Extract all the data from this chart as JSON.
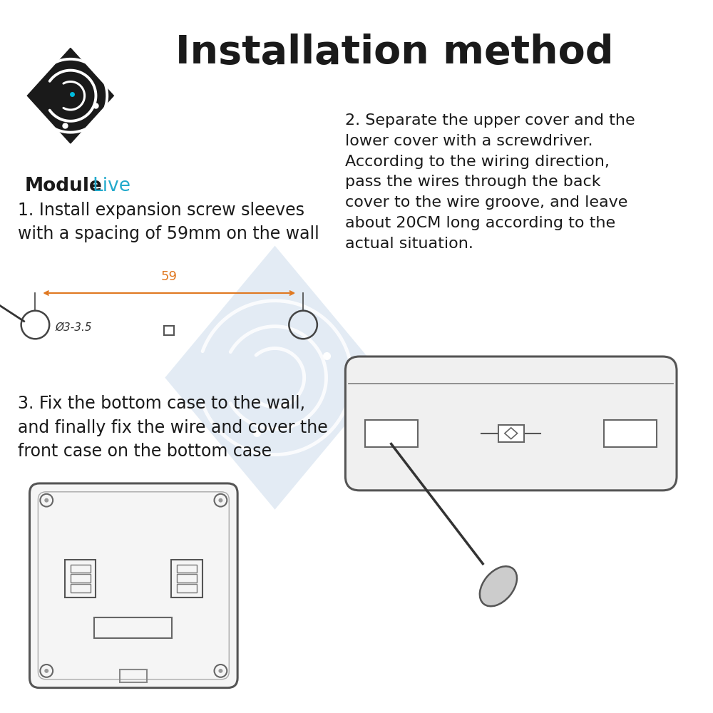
{
  "title": "Installation method",
  "bg_color": "#ffffff",
  "text_color": "#1a1a1a",
  "step1_text": "1. Install expansion screw sleeves\nwith a spacing of 59mm on the wall",
  "step2_text": "2. Separate the upper cover and the\nlower cover with a screwdriver.\nAccording to the wiring direction,\npass the wires through the back\ncover to the wire groove, and leave\nabout 20CM long according to the\nactual situation.",
  "step3_text": "3. Fix the bottom case to the wall,\nand finally fix the wire and cover the\nfront case on the bottom case",
  "logo_text_bold": "Module",
  "logo_text_light": "Live",
  "watermark_color": "#ccdcec",
  "dim_color": "#e07820",
  "line_color": "#444444"
}
